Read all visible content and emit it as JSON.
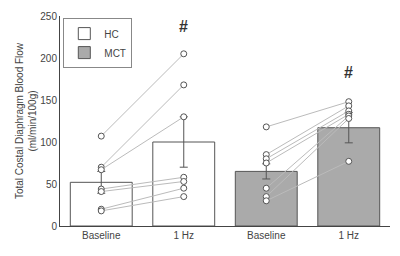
{
  "chart_data": {
    "type": "bar",
    "ylabel": "Total Costal Diaphragm Blood Flow\n(ml/min/100g)",
    "categories": [
      "Baseline",
      "1 Hz",
      "Baseline",
      "1 Hz"
    ],
    "series": [
      {
        "name": "HC",
        "color": "#ffffff",
        "values": [
          52,
          100,
          null,
          null
        ],
        "errors": [
          13,
          30,
          null,
          null
        ],
        "paired": [
          [
            107,
            205
          ],
          [
            70,
            168
          ],
          [
            67,
            130
          ],
          [
            44,
            58
          ],
          [
            41,
            53
          ],
          [
            20,
            45
          ],
          [
            18,
            35
          ]
        ]
      },
      {
        "name": "MCT",
        "color": "#aaaaaa",
        "values": [
          null,
          null,
          65,
          117
        ],
        "errors": [
          null,
          null,
          9,
          18
        ],
        "paired": [
          [
            118,
            148
          ],
          [
            85,
            143
          ],
          [
            80,
            137
          ],
          [
            75,
            133
          ],
          [
            45,
            131
          ],
          [
            35,
            128
          ],
          [
            30,
            77
          ]
        ]
      }
    ],
    "annotations": [
      {
        "text": "#",
        "category": 1,
        "y": 225
      },
      {
        "text": "#",
        "category": 3,
        "y": 170
      }
    ],
    "ylim": [
      0,
      250
    ],
    "yticks": [
      0,
      50,
      100,
      150,
      200,
      250
    ],
    "grid": false,
    "legend": "upper left"
  }
}
